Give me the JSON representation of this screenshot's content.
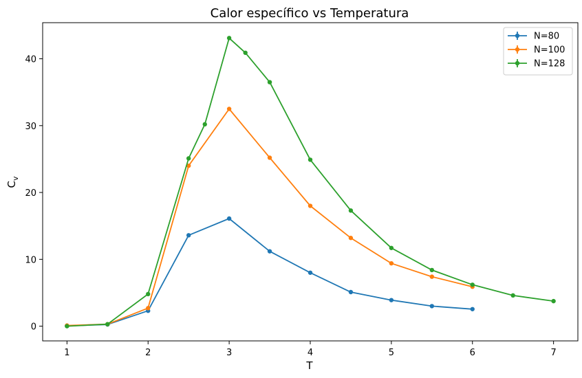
{
  "chart_data": {
    "type": "line",
    "title": "Calor específico vs Temperatura",
    "xlabel": "T",
    "ylabel": "C",
    "ylabel_subscript": "v",
    "xlim": [
      0.7,
      7.3
    ],
    "ylim": [
      -2.2,
      45.4
    ],
    "xticks": [
      1,
      2,
      3,
      4,
      5,
      6,
      7
    ],
    "yticks": [
      0,
      10,
      20,
      30,
      40
    ],
    "grid": false,
    "legend": "top-right",
    "series": [
      {
        "name": "N=80",
        "color": "#1f77b4",
        "x": [
          1,
          1.5,
          2,
          2.5,
          3,
          3.5,
          4,
          4.5,
          5,
          5.5,
          6
        ],
        "y": [
          0.05,
          0.25,
          2.3,
          13.6,
          16.1,
          11.2,
          8.0,
          5.1,
          3.9,
          3.0,
          2.55
        ]
      },
      {
        "name": "N=100",
        "color": "#ff7f0e",
        "x": [
          1,
          1.5,
          2,
          2.5,
          3,
          3.5,
          4,
          4.5,
          5,
          5.5,
          6
        ],
        "y": [
          0.1,
          0.3,
          2.7,
          24.0,
          32.5,
          25.2,
          18.0,
          13.2,
          9.4,
          7.4,
          5.9
        ]
      },
      {
        "name": "N=128",
        "color": "#2ca02c",
        "x": [
          1,
          1.5,
          2,
          2.5,
          2.7,
          3,
          3.2,
          3.5,
          4,
          4.5,
          5,
          5.5,
          6,
          6.5,
          7
        ],
        "y": [
          0.0,
          0.3,
          4.8,
          25.1,
          30.2,
          43.1,
          40.9,
          36.5,
          24.9,
          17.3,
          11.7,
          8.4,
          6.2,
          4.6,
          3.75
        ]
      }
    ]
  }
}
